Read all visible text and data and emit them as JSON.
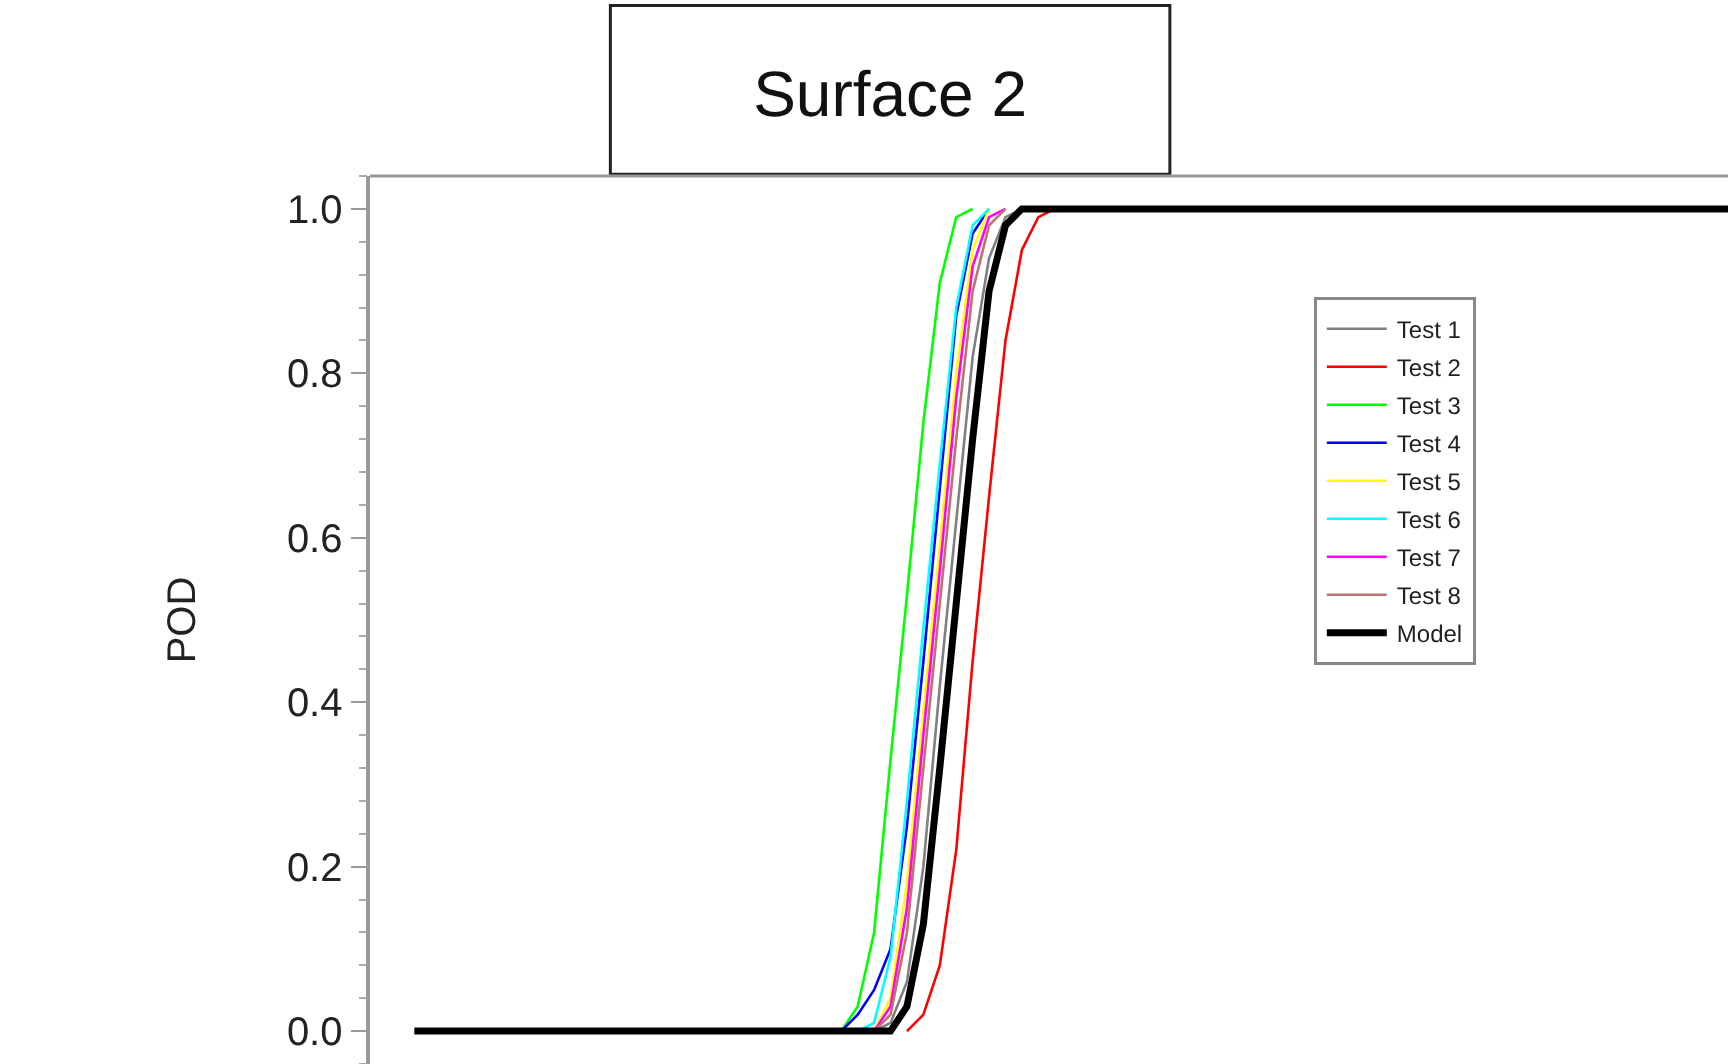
{
  "chart_data": {
    "type": "line",
    "title": "Surface 2",
    "ylabel": "POD",
    "categories": [
      null,
      null,
      null,
      null,
      null,
      null,
      null,
      null,
      null,
      null,
      null,
      null,
      null,
      null,
      null,
      null,
      null,
      null,
      null,
      null,
      null,
      null,
      null,
      null,
      null,
      null,
      null,
      null,
      null,
      null,
      null,
      null,
      null,
      null,
      null,
      null,
      null,
      null,
      null,
      null,
      null,
      null,
      null,
      null,
      null,
      null,
      null,
      null,
      null,
      null,
      null,
      null,
      null,
      null,
      null,
      null,
      null,
      null,
      null,
      null,
      null,
      null,
      null,
      null,
      null,
      null,
      null,
      null,
      null,
      null,
      null,
      null,
      null,
      null,
      null,
      null,
      null,
      null,
      null,
      null,
      null
    ],
    "ylim": [
      -0.04,
      1.04
    ],
    "yticks": [
      {
        "value": 0,
        "label": "0.0"
      },
      0.2,
      0.4,
      0.6,
      0.8,
      {
        "value": 1,
        "label": "1.0"
      }
    ],
    "legend": "top right",
    "series": [
      {
        "name": "Test 1",
        "color": "#808080",
        "values": [
          null,
          null,
          null,
          null,
          null,
          null,
          null,
          null,
          null,
          null,
          null,
          null,
          null,
          null,
          null,
          null,
          null,
          null,
          null,
          null,
          null,
          null,
          null,
          null,
          null,
          null,
          null,
          null,
          0,
          0.01,
          0.06,
          0.2,
          0.42,
          0.62,
          0.82,
          0.94,
          0.99,
          1,
          null,
          null,
          null,
          null,
          null,
          null,
          null,
          null,
          null,
          null,
          null,
          null,
          null,
          null,
          null,
          null,
          null,
          null,
          null,
          null,
          null,
          null,
          null,
          null,
          null,
          null,
          null,
          null,
          null,
          null,
          null,
          null,
          null,
          null,
          null,
          null,
          null,
          null,
          null,
          null,
          null,
          null,
          null
        ]
      },
      {
        "name": "Test 2",
        "color": "#ff0000",
        "values": [
          null,
          null,
          null,
          null,
          null,
          null,
          null,
          null,
          null,
          null,
          null,
          null,
          null,
          null,
          null,
          null,
          null,
          null,
          null,
          null,
          null,
          null,
          null,
          null,
          null,
          null,
          null,
          null,
          null,
          null,
          0,
          0.02,
          0.08,
          0.22,
          0.45,
          0.65,
          0.84,
          0.95,
          0.99,
          1,
          null,
          null,
          null,
          null,
          null,
          null,
          null,
          null,
          null,
          null,
          null,
          null,
          null,
          null,
          null,
          null,
          null,
          null,
          null,
          null,
          null,
          null,
          null,
          null,
          null,
          null,
          null,
          null,
          null,
          null,
          null,
          null,
          null,
          null,
          null,
          null,
          null,
          null,
          null,
          null,
          null
        ]
      },
      {
        "name": "Test 3",
        "color": "#00ff00",
        "values": [
          null,
          null,
          null,
          null,
          null,
          null,
          null,
          null,
          null,
          null,
          null,
          null,
          null,
          null,
          null,
          null,
          null,
          null,
          null,
          null,
          null,
          null,
          null,
          null,
          null,
          null,
          0,
          0.03,
          0.12,
          0.33,
          0.53,
          0.74,
          0.91,
          0.99,
          1,
          null,
          null,
          null,
          null,
          null,
          null,
          null,
          null,
          null,
          null,
          null,
          null,
          null,
          null,
          null,
          null,
          null,
          null,
          null,
          null,
          null,
          null,
          null,
          null,
          null,
          null,
          null,
          null,
          null,
          null,
          null,
          null,
          null,
          null,
          null,
          null,
          null,
          null,
          null,
          null,
          null,
          null,
          null,
          null,
          null,
          null
        ]
      },
      {
        "name": "Test 4",
        "color": "#0000ff",
        "values": [
          null,
          null,
          null,
          null,
          null,
          null,
          null,
          null,
          null,
          null,
          null,
          null,
          null,
          null,
          null,
          null,
          null,
          null,
          null,
          null,
          null,
          null,
          null,
          null,
          null,
          null,
          0,
          0.02,
          0.05,
          0.1,
          0.25,
          0.45,
          0.66,
          0.87,
          0.97,
          1,
          null,
          null,
          null,
          null,
          null,
          null,
          null,
          null,
          null,
          null,
          null,
          null,
          null,
          null,
          null,
          null,
          null,
          null,
          null,
          null,
          null,
          null,
          null,
          null,
          null,
          null,
          null,
          null,
          null,
          null,
          null,
          null,
          null,
          null,
          null,
          null,
          null,
          null,
          null,
          null,
          null,
          null,
          null,
          null,
          null
        ]
      },
      {
        "name": "Test 5",
        "color": "#ffff00",
        "values": [
          null,
          null,
          null,
          null,
          null,
          null,
          null,
          null,
          null,
          null,
          null,
          null,
          null,
          null,
          null,
          null,
          null,
          null,
          null,
          null,
          null,
          null,
          null,
          null,
          null,
          null,
          null,
          null,
          0,
          0.04,
          0.18,
          0.39,
          0.59,
          0.8,
          0.95,
          1,
          null,
          null,
          null,
          null,
          null,
          null,
          null,
          null,
          null,
          null,
          null,
          null,
          null,
          null,
          null,
          null,
          null,
          null,
          null,
          null,
          null,
          null,
          null,
          null,
          null,
          null,
          null,
          null,
          null,
          null,
          null,
          null,
          null,
          null,
          null,
          null,
          null,
          null,
          null,
          null,
          null,
          null,
          null,
          null,
          null
        ]
      },
      {
        "name": "Test 6",
        "color": "#00ffff",
        "values": [
          null,
          null,
          null,
          null,
          null,
          null,
          null,
          null,
          null,
          null,
          null,
          null,
          null,
          null,
          null,
          null,
          null,
          null,
          null,
          null,
          null,
          null,
          null,
          null,
          null,
          null,
          null,
          0,
          0.01,
          0.09,
          0.28,
          0.49,
          0.69,
          0.88,
          0.98,
          1,
          null,
          null,
          null,
          null,
          null,
          null,
          null,
          null,
          null,
          null,
          null,
          null,
          null,
          null,
          null,
          null,
          null,
          null,
          null,
          null,
          null,
          null,
          null,
          null,
          null,
          null,
          null,
          null,
          null,
          null,
          null,
          null,
          null,
          null,
          null,
          null,
          null,
          null,
          null,
          null,
          null,
          null,
          null,
          null,
          null
        ]
      },
      {
        "name": "Test 7",
        "color": "#ff00ff",
        "values": [
          null,
          null,
          null,
          null,
          null,
          null,
          null,
          null,
          null,
          null,
          null,
          null,
          null,
          null,
          null,
          null,
          null,
          null,
          null,
          null,
          null,
          null,
          null,
          null,
          null,
          null,
          null,
          null,
          0,
          0.03,
          0.15,
          0.36,
          0.56,
          0.77,
          0.93,
          0.99,
          1,
          null,
          null,
          null,
          null,
          null,
          null,
          null,
          null,
          null,
          null,
          null,
          null,
          null,
          null,
          null,
          null,
          null,
          null,
          null,
          null,
          null,
          null,
          null,
          null,
          null,
          null,
          null,
          null,
          null,
          null,
          null,
          null,
          null,
          null,
          null,
          null,
          null,
          null,
          null,
          null,
          null,
          null,
          null,
          null
        ]
      },
      {
        "name": "Test 8",
        "color": "#c07070",
        "values": [
          null,
          null,
          null,
          null,
          null,
          null,
          null,
          null,
          null,
          null,
          null,
          null,
          null,
          null,
          null,
          null,
          null,
          null,
          null,
          null,
          null,
          null,
          null,
          null,
          null,
          null,
          null,
          null,
          0,
          0.02,
          0.12,
          0.32,
          0.52,
          0.72,
          0.9,
          0.98,
          1,
          null,
          null,
          null,
          null,
          null,
          null,
          null,
          null,
          null,
          null,
          null,
          null,
          null,
          null,
          null,
          null,
          null,
          null,
          null,
          null,
          null,
          null,
          null,
          null,
          null,
          null,
          null,
          null,
          null,
          null,
          null,
          null,
          null,
          null,
          null,
          null,
          null,
          null,
          null,
          null,
          null,
          null,
          null,
          null
        ]
      },
      {
        "name": "Model",
        "color": "#000000",
        "values": [
          0,
          0,
          0,
          0,
          0,
          0,
          0,
          0,
          0,
          0,
          0,
          0,
          0,
          0,
          0,
          0,
          0,
          0,
          0,
          0,
          0,
          0,
          0,
          0,
          0,
          0,
          0,
          0,
          0,
          0,
          0.03,
          0.13,
          0.32,
          0.52,
          0.72,
          0.9,
          0.98,
          1,
          1,
          1,
          1,
          1,
          1,
          1,
          1,
          1,
          1,
          1,
          1,
          1,
          1,
          1,
          1,
          1,
          1,
          1,
          1,
          1,
          1,
          1,
          1,
          1,
          1,
          1,
          1,
          1,
          1,
          1,
          1,
          1,
          1,
          1,
          1,
          1,
          1,
          1,
          1,
          1,
          1,
          1,
          1
        ]
      }
    ]
  }
}
